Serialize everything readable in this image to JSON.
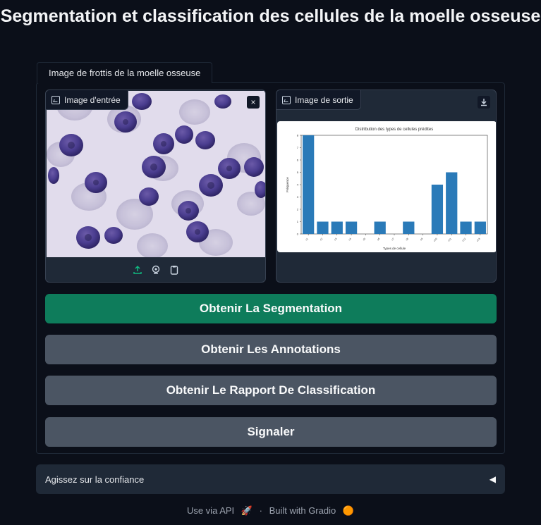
{
  "page": {
    "title": "Segmentation et classification des cellules de la moelle osseuse"
  },
  "tab": {
    "label": "Image de frottis de la moelle osseuse"
  },
  "input_image": {
    "label": "Image d'entrée",
    "close_icon": "×",
    "source_icons": [
      "upload-icon",
      "webcam-icon",
      "clipboard-icon"
    ],
    "accent": "#10b981"
  },
  "output_image": {
    "label": "Image de sortie",
    "download_icon": "download-icon"
  },
  "chart_data": {
    "type": "bar",
    "title": "Distribution des types de cellules prédites",
    "xlabel": "Types de cellule",
    "ylabel": "Fréquence",
    "categories": [
      "c1",
      "c2",
      "c3",
      "c4",
      "c5",
      "c6",
      "c7",
      "c8",
      "c9",
      "c10",
      "c11",
      "c12",
      "c13"
    ],
    "values": [
      8,
      1,
      1,
      1,
      0,
      1,
      0,
      1,
      0,
      4,
      5,
      1,
      1
    ],
    "ylim": [
      0,
      8
    ],
    "bar_color": "#2a7ab8",
    "grid": false
  },
  "buttons": {
    "segmentation": "Obtenir La Segmentation",
    "annotations": "Obtenir Les Annotations",
    "rapport": "Obtenir Le Rapport De Classification",
    "signaler": "Signaler"
  },
  "colors": {
    "primary": "#0e7c5b",
    "secondary": "#4b5563",
    "background": "#0b0f19"
  },
  "accordion": {
    "label": "Agissez sur la confiance",
    "arrow": "◀"
  },
  "footer": {
    "api": "Use via API",
    "separator": "·",
    "built": "Built with Gradio"
  }
}
